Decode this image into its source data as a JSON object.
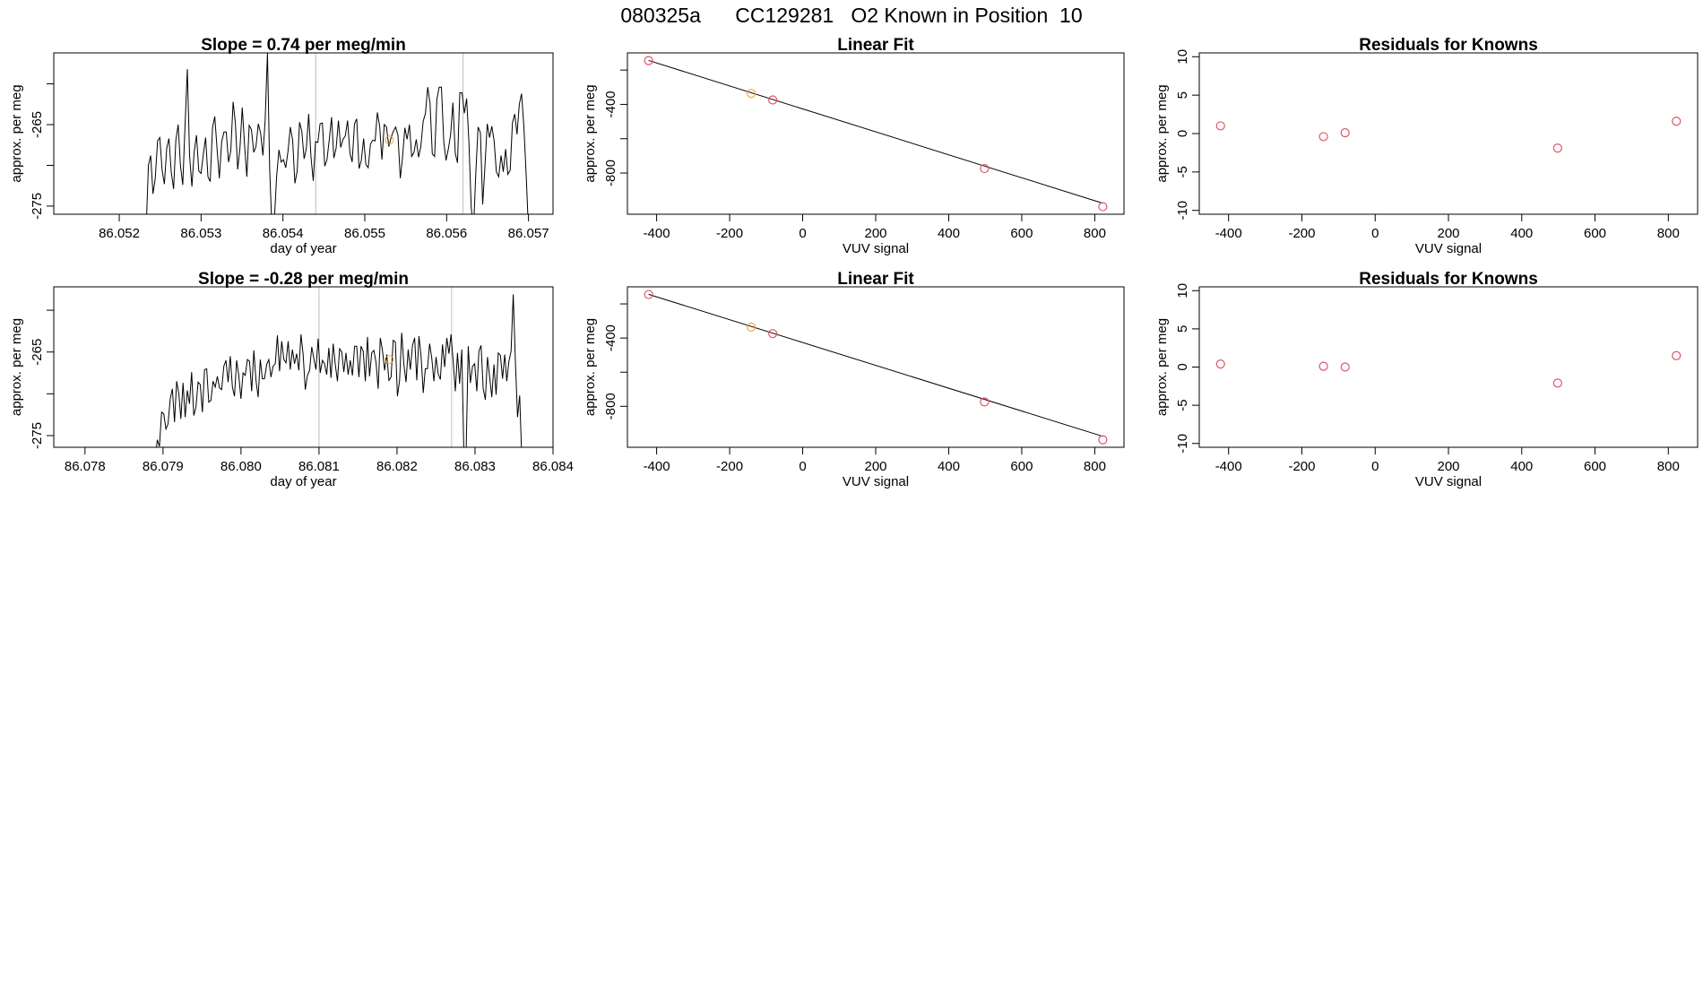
{
  "page": {
    "title": "080325a      CC129281   O2 Known in Position  10"
  },
  "colors": {
    "axis": "#000000",
    "series": "#000000",
    "vline": "#bebebe",
    "point_red": "#df536b",
    "point_orange": "#f5a623"
  },
  "chart_data": [
    {
      "id": "ts1",
      "type": "line",
      "title": "Slope =  0.74  per meg/min",
      "xlabel": "day of year",
      "ylabel": "approx. per meg",
      "xlim": [
        86.0512,
        86.0573
      ],
      "ylim": [
        -276.0,
        -256.2
      ],
      "xticks": [
        86.052,
        86.053,
        86.054,
        86.055,
        86.056,
        86.057
      ],
      "xtick_labels": [
        "86.052",
        "86.053",
        "86.054",
        "86.055",
        "86.056",
        "86.057"
      ],
      "yticks": [
        -275,
        -270,
        -265,
        -260
      ],
      "ytick_labels": [
        "-275",
        "",
        "-265",
        ""
      ],
      "vlines": [
        86.0544,
        86.0562
      ],
      "marker": [
        86.0553,
        -266.9
      ],
      "series_x_range": [
        86.0523,
        86.057
      ],
      "values": [
        -278.5,
        -278.0,
        -270.0,
        -268.8,
        -273.5,
        -271.6,
        -267.0,
        -266.6,
        -270.6,
        -272.3,
        -267.9,
        -266.7,
        -270.9,
        -272.9,
        -266.9,
        -265.0,
        -270.0,
        -272.4,
        -265.3,
        -258.2,
        -268.8,
        -272.6,
        -268.4,
        -266.3,
        -270.7,
        -271.0,
        -268.6,
        -266.6,
        -271.4,
        -272.0,
        -265.4,
        -264.0,
        -268.0,
        -271.6,
        -267.1,
        -265.9,
        -265.9,
        -269.6,
        -268.2,
        -262.2,
        -264.8,
        -270.5,
        -267.9,
        -262.9,
        -267.4,
        -271.4,
        -265.1,
        -265.6,
        -268.4,
        -267.7,
        -264.9,
        -266.0,
        -268.8,
        -264.5,
        -256.2,
        -270.6,
        -278.0,
        -276.7,
        -271.4,
        -268.1,
        -269.6,
        -269.3,
        -270.3,
        -268.2,
        -265.3,
        -266.9,
        -272.2,
        -270.7,
        -264.7,
        -265.8,
        -269.2,
        -267.9,
        -263.7,
        -268.9,
        -271.9,
        -267.1,
        -267.2,
        -264.9,
        -264.8,
        -270.1,
        -269.3,
        -266.8,
        -264.1,
        -269.1,
        -267.9,
        -264.5,
        -267.8,
        -266.8,
        -266.4,
        -264.5,
        -268.5,
        -269.6,
        -264.9,
        -264.3,
        -270.4,
        -269.4,
        -266.7,
        -269.9,
        -270.3,
        -267.4,
        -266.9,
        -267.0,
        -263.5,
        -265.2,
        -269.3,
        -265.0,
        -265.3,
        -267.7,
        -266.6,
        -265.8,
        -265.3,
        -266.3,
        -271.6,
        -269.0,
        -265.4,
        -266.8,
        -265.0,
        -268.9,
        -268.4,
        -266.8,
        -269.0,
        -267.7,
        -264.6,
        -263.6,
        -260.4,
        -262.4,
        -268.6,
        -268.9,
        -261.9,
        -260.4,
        -260.4,
        -267.1,
        -269.4,
        -268.0,
        -266.2,
        -262.3,
        -268.5,
        -269.7,
        -261.1,
        -261.1,
        -263.6,
        -261.8,
        -267.2,
        -275.1,
        -278.0,
        -270.8,
        -265.3,
        -266.0,
        -274.8,
        -270.0,
        -264.9,
        -266.6,
        -265.2,
        -267.0,
        -270.8,
        -271.4,
        -268.8,
        -270.8,
        -268.0,
        -271.1,
        -270.6,
        -264.8,
        -263.7,
        -266.2,
        -262.5,
        -261.2,
        -265.3,
        -271.3,
        -278.0
      ]
    },
    {
      "id": "fit1",
      "type": "scatter",
      "title": "Linear Fit",
      "xlabel": "VUV signal",
      "ylabel": "approx. per meg",
      "xlim": [
        -480,
        880
      ],
      "ylim": [
        -1040,
        -100
      ],
      "xticks": [
        -400,
        -200,
        0,
        200,
        400,
        600,
        800
      ],
      "xtick_labels": [
        "-400",
        "-200",
        "0",
        "200",
        "400",
        "600",
        "800"
      ],
      "yticks": [
        -800,
        -600,
        -400,
        -200
      ],
      "ytick_labels": [
        "-800",
        "",
        "-400",
        ""
      ],
      "fit_line": [
        [
          -422,
          -144
        ],
        [
          822,
          -976
        ]
      ],
      "points": [
        {
          "x": -422,
          "y": -145,
          "color": "red"
        },
        {
          "x": -141,
          "y": -336,
          "color": "orange"
        },
        {
          "x": -82,
          "y": -374,
          "color": "red"
        },
        {
          "x": 498,
          "y": -774,
          "color": "red"
        },
        {
          "x": 822,
          "y": -996,
          "color": "red"
        }
      ]
    },
    {
      "id": "res1",
      "type": "scatter",
      "title": "Residuals for Knowns",
      "xlabel": "VUV signal",
      "ylabel": "approx. per meg",
      "xlim": [
        -480,
        880
      ],
      "ylim": [
        -10.5,
        10.5
      ],
      "xticks": [
        -400,
        -200,
        0,
        200,
        400,
        600,
        800
      ],
      "xtick_labels": [
        "-400",
        "-200",
        "0",
        "200",
        "400",
        "600",
        "800"
      ],
      "yticks": [
        -10,
        -5,
        0,
        5,
        10
      ],
      "ytick_labels": [
        "-10",
        "-5",
        "0",
        "5",
        "10"
      ],
      "points": [
        {
          "x": -422,
          "y": 1.0,
          "color": "red"
        },
        {
          "x": -141,
          "y": -0.4,
          "color": "red"
        },
        {
          "x": -82,
          "y": 0.1,
          "color": "red"
        },
        {
          "x": 498,
          "y": -1.9,
          "color": "red"
        },
        {
          "x": 822,
          "y": 1.6,
          "color": "red"
        }
      ]
    },
    {
      "id": "ts2",
      "type": "line",
      "title": "Slope =  -0.28  per meg/min",
      "xlabel": "day of year",
      "ylabel": "approx. per meg",
      "xlim": [
        86.0776,
        86.084
      ],
      "ylim": [
        -276.4,
        -257.2
      ],
      "xticks": [
        86.078,
        86.079,
        86.08,
        86.081,
        86.082,
        86.083,
        86.084
      ],
      "xtick_labels": [
        "86.078",
        "86.079",
        "86.080",
        "86.081",
        "86.082",
        "86.083",
        "86.084"
      ],
      "yticks": [
        -275,
        -270,
        -265,
        -260
      ],
      "ytick_labels": [
        "-275",
        "",
        "-265",
        ""
      ],
      "vlines": [
        86.081,
        86.0827
      ],
      "marker": [
        86.0819,
        -265.9
      ],
      "series_x_range": [
        86.0789,
        86.0836
      ],
      "values": [
        -278.0,
        -275.5,
        -276.3,
        -272.2,
        -272.4,
        -274.2,
        -273.6,
        -270.6,
        -269.4,
        -273.4,
        -268.5,
        -270.0,
        -273.0,
        -268.7,
        -272.8,
        -269.6,
        -271.2,
        -267.4,
        -272.6,
        -271.6,
        -268.6,
        -268.9,
        -272.2,
        -267.1,
        -267.0,
        -271.0,
        -270.8,
        -268.5,
        -269.2,
        -267.9,
        -269.3,
        -269.5,
        -266.7,
        -266.0,
        -268.6,
        -265.5,
        -269.2,
        -270.3,
        -266.0,
        -267.8,
        -270.6,
        -267.5,
        -267.8,
        -265.9,
        -266.1,
        -269.7,
        -264.8,
        -268.4,
        -270.4,
        -265.9,
        -268.2,
        -268.2,
        -266.5,
        -265.9,
        -268.0,
        -266.7,
        -266.4,
        -263.0,
        -267.3,
        -263.7,
        -265.9,
        -266.3,
        -263.7,
        -267.1,
        -264.7,
        -266.4,
        -265.2,
        -267.2,
        -262.9,
        -265.3,
        -269.5,
        -267.8,
        -267.2,
        -264.4,
        -265.8,
        -267.1,
        -263.4,
        -267.5,
        -266.0,
        -266.4,
        -267.7,
        -264.5,
        -268.1,
        -264.0,
        -266.5,
        -268.5,
        -264.6,
        -265.0,
        -267.4,
        -265.1,
        -267.7,
        -266.0,
        -267.8,
        -264.3,
        -264.3,
        -268.0,
        -264.3,
        -264.9,
        -268.5,
        -263.2,
        -267.9,
        -265.1,
        -264.8,
        -266.2,
        -269.4,
        -263.3,
        -264.8,
        -267.2,
        -265.3,
        -268.4,
        -268.0,
        -263.6,
        -263.8,
        -270.3,
        -268.4,
        -262.7,
        -266.5,
        -268.6,
        -264.7,
        -267.1,
        -264.2,
        -263.3,
        -268.4,
        -263.1,
        -265.5,
        -269.9,
        -267.0,
        -267.0,
        -264.0,
        -265.7,
        -268.5,
        -265.6,
        -267.6,
        -268.3,
        -264.1,
        -266.8,
        -263.3,
        -265.2,
        -262.9,
        -266.1,
        -269.7,
        -265.1,
        -268.8,
        -264.7,
        -277.5,
        -277.2,
        -264.3,
        -268.7,
        -266.7,
        -266.4,
        -269.7,
        -264.9,
        -264.2,
        -269.4,
        -270.7,
        -265.6,
        -268.0,
        -270.4,
        -266.5,
        -270.1,
        -265.1,
        -265.4,
        -268.2,
        -265.3,
        -268.5,
        -266.1,
        -264.9,
        -258.1,
        -266.1,
        -272.8,
        -270.2,
        -278.0
      ]
    },
    {
      "id": "fit2",
      "type": "scatter",
      "title": "Linear Fit",
      "xlabel": "VUV signal",
      "ylabel": "approx. per meg",
      "xlim": [
        -480,
        880
      ],
      "ylim": [
        -1040,
        -100
      ],
      "xticks": [
        -400,
        -200,
        0,
        200,
        400,
        600,
        800
      ],
      "xtick_labels": [
        "-400",
        "-200",
        "0",
        "200",
        "400",
        "600",
        "800"
      ],
      "yticks": [
        -800,
        -600,
        -400,
        -200
      ],
      "ytick_labels": [
        "-800",
        "",
        "-400",
        ""
      ],
      "fit_line": [
        [
          -422,
          -144
        ],
        [
          822,
          -976
        ]
      ],
      "points": [
        {
          "x": -422,
          "y": -145,
          "color": "red"
        },
        {
          "x": -141,
          "y": -336,
          "color": "orange"
        },
        {
          "x": -82,
          "y": -374,
          "color": "red"
        },
        {
          "x": 498,
          "y": -774,
          "color": "red"
        },
        {
          "x": 822,
          "y": -996,
          "color": "red"
        }
      ]
    },
    {
      "id": "res2",
      "type": "scatter",
      "title": "Residuals for Knowns",
      "xlabel": "VUV signal",
      "ylabel": "approx. per meg",
      "xlim": [
        -480,
        880
      ],
      "ylim": [
        -10.5,
        10.5
      ],
      "xticks": [
        -400,
        -200,
        0,
        200,
        400,
        600,
        800
      ],
      "xtick_labels": [
        "-400",
        "-200",
        "0",
        "200",
        "400",
        "600",
        "800"
      ],
      "yticks": [
        -10,
        -5,
        0,
        5,
        10
      ],
      "ytick_labels": [
        "-10",
        "-5",
        "0",
        "5",
        "10"
      ],
      "points": [
        {
          "x": -422,
          "y": 0.4,
          "color": "red"
        },
        {
          "x": -141,
          "y": 0.1,
          "color": "red"
        },
        {
          "x": -82,
          "y": 0.0,
          "color": "red"
        },
        {
          "x": 498,
          "y": -2.1,
          "color": "red"
        },
        {
          "x": 822,
          "y": 1.5,
          "color": "red"
        }
      ]
    }
  ]
}
